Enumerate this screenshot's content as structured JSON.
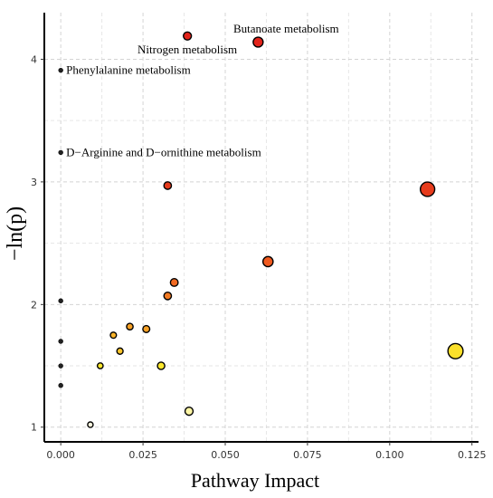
{
  "chart_data": {
    "type": "scatter",
    "title": "",
    "xlabel": "Pathway Impact",
    "ylabel": "−ln(p)",
    "xlim": [
      -0.005,
      0.127
    ],
    "ylim": [
      0.88,
      4.38
    ],
    "x_ticks": [
      0.0,
      0.025,
      0.05,
      0.075,
      0.1,
      0.125
    ],
    "x_tick_labels": [
      "0.000",
      "0.025",
      "0.050",
      "0.075",
      "0.100",
      "0.125"
    ],
    "y_ticks": [
      1,
      2,
      3,
      4
    ],
    "y_tick_labels": [
      "1",
      "2",
      "3",
      "4"
    ],
    "grid": true,
    "legend": "none",
    "points": [
      {
        "x": 0.0385,
        "y": 4.19,
        "color": "#e3241b",
        "label": ""
      },
      {
        "x": 0.06,
        "y": 4.14,
        "color": "#e3241b",
        "label": "Butanoate metabolism"
      },
      {
        "x": 0.0385,
        "y": 4.19,
        "color": "#e3241b",
        "label": "Nitrogen metabolism"
      },
      {
        "x": 0.0,
        "y": 3.91,
        "color": "#e3241b",
        "label": "Phenylalanine metabolism"
      },
      {
        "x": 0.0,
        "y": 3.24,
        "color": "#e3241b",
        "label": "D−Arginine and D−ornithine metabolism"
      },
      {
        "x": 0.0325,
        "y": 2.97,
        "color": "#e63b1c",
        "label": ""
      },
      {
        "x": 0.1115,
        "y": 2.94,
        "color": "#e63b1c",
        "label": ""
      },
      {
        "x": 0.063,
        "y": 2.35,
        "color": "#f05a1f",
        "label": ""
      },
      {
        "x": 0.0345,
        "y": 2.18,
        "color": "#f26a21",
        "label": ""
      },
      {
        "x": 0.0325,
        "y": 2.07,
        "color": "#f37b23",
        "label": ""
      },
      {
        "x": 0.0,
        "y": 2.03,
        "color": "#f37b23",
        "label": ""
      },
      {
        "x": 0.021,
        "y": 1.82,
        "color": "#f7a126",
        "label": ""
      },
      {
        "x": 0.026,
        "y": 1.8,
        "color": "#f7a126",
        "label": ""
      },
      {
        "x": 0.016,
        "y": 1.75,
        "color": "#f9b42a",
        "label": ""
      },
      {
        "x": 0.0,
        "y": 1.7,
        "color": "#f9b42a",
        "label": ""
      },
      {
        "x": 0.018,
        "y": 1.62,
        "color": "#fbc52b",
        "label": ""
      },
      {
        "x": 0.12,
        "y": 1.62,
        "color": "#fbe02a",
        "label": ""
      },
      {
        "x": 0.012,
        "y": 1.5,
        "color": "#fce72d",
        "label": ""
      },
      {
        "x": 0.0305,
        "y": 1.5,
        "color": "#fce72d",
        "label": ""
      },
      {
        "x": 0.0,
        "y": 1.5,
        "color": "#fce72d",
        "label": ""
      },
      {
        "x": 0.0,
        "y": 1.34,
        "color": "#fdf06a",
        "label": ""
      },
      {
        "x": 0.039,
        "y": 1.13,
        "color": "#fdf6a5",
        "label": ""
      },
      {
        "x": 0.009,
        "y": 1.02,
        "color": "#fffbe0",
        "label": ""
      }
    ]
  }
}
